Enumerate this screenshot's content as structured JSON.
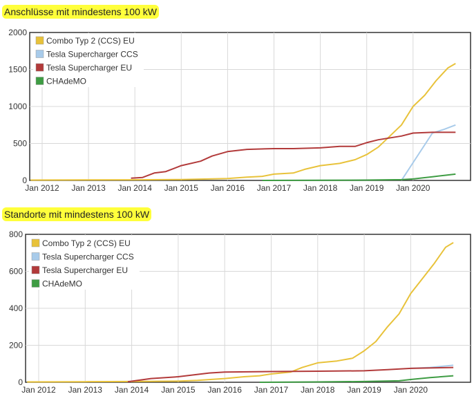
{
  "chart_data": [
    {
      "type": "line",
      "title": "Anschlüsse mit mindestens 100 kW",
      "xlabel": "",
      "ylabel": "",
      "ylim": [
        0,
        2000
      ],
      "yticks": [
        "0",
        "500",
        "1000",
        "1500",
        "2000"
      ],
      "xticks": [
        "Jan 2012",
        "Jan 2013",
        "Jan 2014",
        "Jan 2015",
        "Jan 2016",
        "Jan 2017",
        "Jan 2018",
        "Jan 2019",
        "Jan 2020"
      ],
      "grid": true,
      "legend_position": "top-left",
      "series": [
        {
          "name": "Combo Typ 2 (CCS) EU",
          "color": "#e8c23a",
          "points": [
            [
              "2011-10",
              5
            ],
            [
              "2013-01",
              7
            ],
            [
              "2014-01",
              8
            ],
            [
              "2015-01",
              12
            ],
            [
              "2015-06",
              18
            ],
            [
              "2016-01",
              25
            ],
            [
              "2016-06",
              45
            ],
            [
              "2016-10",
              55
            ],
            [
              "2017-01",
              85
            ],
            [
              "2017-06",
              100
            ],
            [
              "2017-09",
              150
            ],
            [
              "2018-01",
              200
            ],
            [
              "2018-06",
              230
            ],
            [
              "2018-10",
              280
            ],
            [
              "2019-01",
              350
            ],
            [
              "2019-04",
              450
            ],
            [
              "2019-07",
              600
            ],
            [
              "2019-10",
              750
            ],
            [
              "2020-01",
              1000
            ],
            [
              "2020-04",
              1150
            ],
            [
              "2020-07",
              1350
            ],
            [
              "2020-10",
              1520
            ],
            [
              "2020-12",
              1580
            ]
          ]
        },
        {
          "name": "Tesla Supercharger CCS",
          "color": "#a8cbea",
          "points": [
            [
              "2019-10",
              0
            ],
            [
              "2020-06",
              640
            ],
            [
              "2020-09",
              690
            ],
            [
              "2020-12",
              750
            ]
          ]
        },
        {
          "name": "Tesla Supercharger EU",
          "color": "#b23a3a",
          "points": [
            [
              "2013-12",
              30
            ],
            [
              "2014-03",
              40
            ],
            [
              "2014-06",
              100
            ],
            [
              "2014-09",
              120
            ],
            [
              "2015-01",
              200
            ],
            [
              "2015-06",
              260
            ],
            [
              "2015-09",
              330
            ],
            [
              "2016-01",
              390
            ],
            [
              "2016-06",
              420
            ],
            [
              "2017-01",
              430
            ],
            [
              "2017-06",
              430
            ],
            [
              "2018-01",
              440
            ],
            [
              "2018-06",
              460
            ],
            [
              "2018-10",
              460
            ],
            [
              "2019-01",
              510
            ],
            [
              "2019-04",
              550
            ],
            [
              "2019-10",
              600
            ],
            [
              "2020-01",
              640
            ],
            [
              "2020-06",
              650
            ],
            [
              "2020-12",
              650
            ]
          ]
        },
        {
          "name": "CHAdeMO",
          "color": "#3e9c43",
          "points": [
            [
              "2016-10",
              0
            ],
            [
              "2018-01",
              2
            ],
            [
              "2019-01",
              5
            ],
            [
              "2019-10",
              10
            ],
            [
              "2020-01",
              20
            ],
            [
              "2020-06",
              50
            ],
            [
              "2020-12",
              85
            ]
          ]
        }
      ]
    },
    {
      "type": "line",
      "title": "Standorte mit mindestens 100 kW",
      "xlabel": "",
      "ylabel": "",
      "ylim": [
        0,
        800
      ],
      "yticks": [
        "0",
        "200",
        "400",
        "600",
        "800"
      ],
      "xticks": [
        "Jan 2012",
        "Jan 2013",
        "Jan 2014",
        "Jan 2015",
        "Jan 2016",
        "Jan 2017",
        "Jan 2018",
        "Jan 2019",
        "Jan 2020"
      ],
      "grid": true,
      "legend_position": "top-left",
      "series": [
        {
          "name": "Combo Typ 2 (CCS) EU",
          "color": "#e8c23a",
          "points": [
            [
              "2011-10",
              2
            ],
            [
              "2013-01",
              3
            ],
            [
              "2014-01",
              4
            ],
            [
              "2015-01",
              6
            ],
            [
              "2015-06",
              10
            ],
            [
              "2016-01",
              20
            ],
            [
              "2016-06",
              30
            ],
            [
              "2016-10",
              35
            ],
            [
              "2017-01",
              45
            ],
            [
              "2017-06",
              55
            ],
            [
              "2017-09",
              80
            ],
            [
              "2018-01",
              105
            ],
            [
              "2018-06",
              115
            ],
            [
              "2018-10",
              130
            ],
            [
              "2019-01",
              170
            ],
            [
              "2019-04",
              220
            ],
            [
              "2019-07",
              300
            ],
            [
              "2019-10",
              370
            ],
            [
              "2020-01",
              480
            ],
            [
              "2020-04",
              560
            ],
            [
              "2020-07",
              640
            ],
            [
              "2020-10",
              730
            ],
            [
              "2020-12",
              755
            ]
          ]
        },
        {
          "name": "Tesla Supercharger CCS",
          "color": "#a8cbea",
          "points": [
            [
              "2020-01",
              75
            ],
            [
              "2020-06",
              80
            ],
            [
              "2020-12",
              92
            ]
          ]
        },
        {
          "name": "Tesla Supercharger EU",
          "color": "#b23a3a",
          "points": [
            [
              "2013-12",
              3
            ],
            [
              "2014-06",
              20
            ],
            [
              "2015-01",
              30
            ],
            [
              "2015-09",
              50
            ],
            [
              "2016-01",
              55
            ],
            [
              "2017-01",
              58
            ],
            [
              "2018-01",
              60
            ],
            [
              "2019-01",
              62
            ],
            [
              "2019-07",
              68
            ],
            [
              "2020-01",
              75
            ],
            [
              "2020-12",
              80
            ]
          ]
        },
        {
          "name": "CHAdeMO",
          "color": "#3e9c43",
          "points": [
            [
              "2016-10",
              0
            ],
            [
              "2018-01",
              2
            ],
            [
              "2019-01",
              4
            ],
            [
              "2019-10",
              8
            ],
            [
              "2020-01",
              15
            ],
            [
              "2020-06",
              25
            ],
            [
              "2020-12",
              35
            ]
          ]
        }
      ]
    }
  ]
}
